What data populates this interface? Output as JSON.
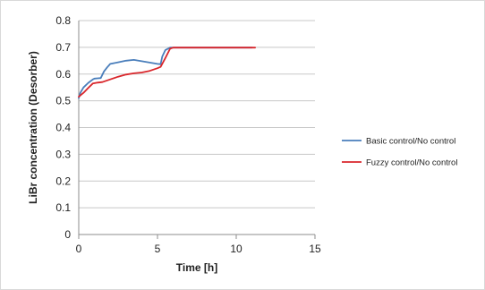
{
  "chart_data": {
    "type": "line",
    "xlabel": "Time [h]",
    "ylabel": "LiBr concentration (Desorber)",
    "xlim": [
      0,
      15
    ],
    "ylim": [
      0,
      0.8
    ],
    "x_ticks": [
      "0",
      "5",
      "10",
      "15"
    ],
    "y_ticks": [
      "0",
      "0.1",
      "0.2",
      "0.3",
      "0.4",
      "0.5",
      "0.6",
      "0.7",
      "0.8"
    ],
    "grid": "horizontal",
    "legend_position": "right",
    "series": [
      {
        "name": "Basic control/No control",
        "color": "#4a7ebb",
        "x": [
          0,
          0.1,
          0.3,
          0.6,
          0.9,
          1.0,
          1.2,
          1.4,
          1.6,
          1.8,
          2.0,
          2.5,
          3.0,
          3.5,
          4.0,
          4.5,
          5.0,
          5.2,
          5.3,
          5.5,
          5.8,
          6.0,
          7.0,
          8.0,
          9.0,
          10.0,
          11.0
        ],
        "y": [
          0.51,
          0.53,
          0.55,
          0.567,
          0.58,
          0.583,
          0.584,
          0.585,
          0.61,
          0.625,
          0.638,
          0.644,
          0.65,
          0.653,
          0.648,
          0.643,
          0.638,
          0.637,
          0.665,
          0.69,
          0.699,
          0.699,
          0.699,
          0.699,
          0.699,
          0.699,
          0.699
        ]
      },
      {
        "name": "Fuzzy control/No control",
        "color": "#d9262b",
        "x": [
          0,
          0.3,
          0.6,
          0.9,
          1.2,
          1.5,
          2.0,
          2.5,
          3.0,
          3.5,
          4.0,
          4.5,
          5.0,
          5.2,
          5.5,
          5.8,
          6.0,
          7.0,
          8.0,
          9.0,
          10.0,
          11.2
        ],
        "y": [
          0.515,
          0.53,
          0.548,
          0.565,
          0.568,
          0.57,
          0.58,
          0.59,
          0.598,
          0.603,
          0.606,
          0.612,
          0.622,
          0.627,
          0.66,
          0.695,
          0.699,
          0.699,
          0.699,
          0.699,
          0.699,
          0.699
        ]
      }
    ]
  }
}
